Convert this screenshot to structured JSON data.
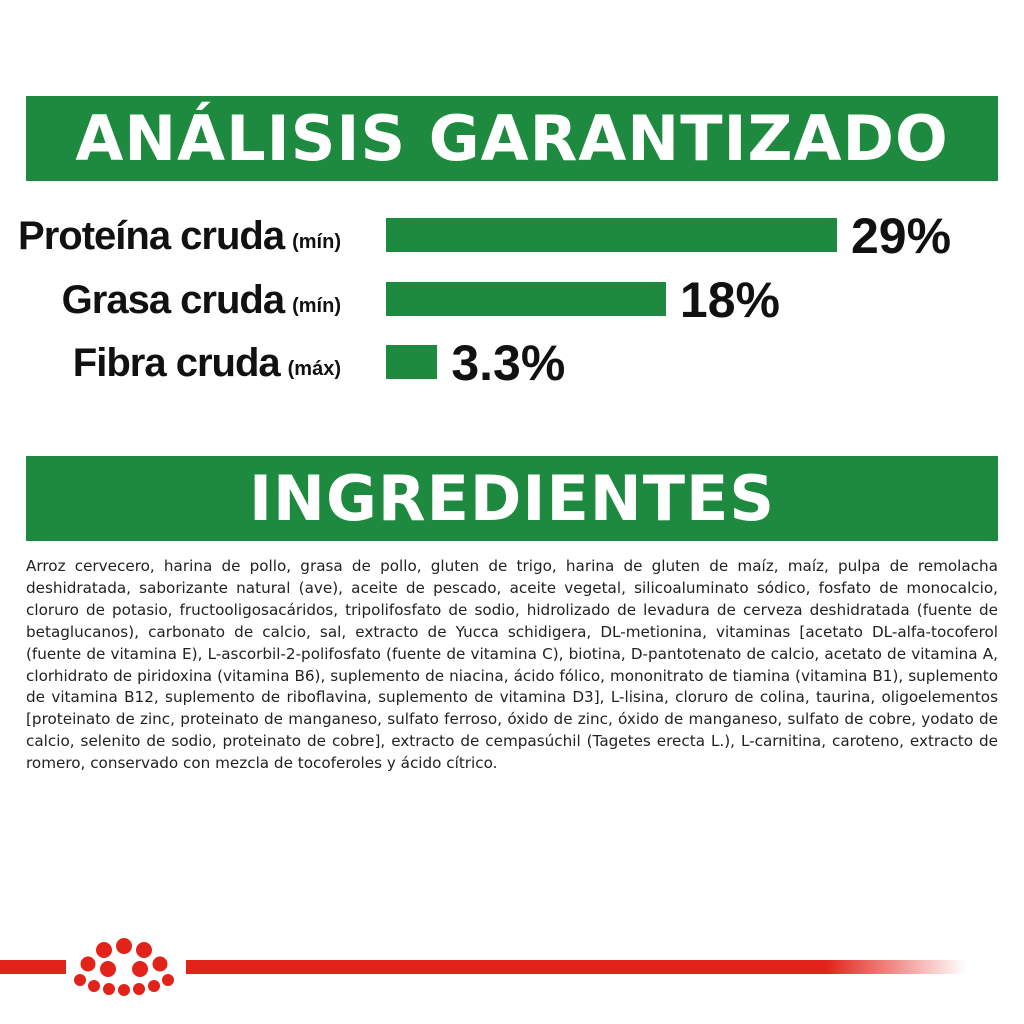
{
  "analysis": {
    "title": "ANÁLISIS GARANTIZADO",
    "rows": [
      {
        "label": "Proteína cruda",
        "qualifier": "(mín)",
        "value_text": "29%",
        "value": 29
      },
      {
        "label": "Grasa cruda",
        "qualifier": "(mín)",
        "value_text": "18%",
        "value": 18
      },
      {
        "label": "Fibra cruda",
        "qualifier": "(máx)",
        "value_text": "3.3%",
        "value": 3.3
      }
    ]
  },
  "ingredients": {
    "title": "INGREDIENTES",
    "text": "Arroz cervecero, harina de pollo, grasa de pollo, gluten de trigo, harina de gluten de maíz, maíz, pulpa de remolacha deshidratada, saborizante natural (ave), aceite de pescado, aceite vegetal, silicoaluminato sódico, fosfato de monocalcio, cloruro de potasio, fructooligosacáridos, tripolifosfato de sodio, hidrolizado de levadura de cerveza deshidratada (fuente de betaglucanos), carbonato de calcio, sal, extracto de Yucca schidigera, DL-metionina, vitaminas [acetato DL-alfa-tocoferol (fuente de vitamina E), L-ascorbil-2-polifosfato (fuente de vitamina C), biotina, D-pantotenato de calcio, acetato de vitamina A, clorhidrato de piridoxina (vitamina B6), suplemento de niacina, ácido fólico, mononitrato de tiamina (vitamina B1), suplemento de vitamina B12, suplemento de riboflavina, suplemento de vitamina D3], L-lisina, cloruro de colina, taurina, oligoelementos [proteinato de zinc, proteinato de manganeso, sulfato ferroso, óxido de zinc, óxido de manganeso, sulfato de cobre, yodato de calcio, selenito de sodio, proteinato de cobre], extracto de cempasúchil (Tagetes erecta L.), L-carnitina, caroteno, extracto de romero, conservado con mezcla de tocoferoles y ácido cítrico."
  },
  "colors": {
    "brand_green": "#1d8a3f",
    "brand_red": "#e2231a"
  },
  "footer": {
    "logo_icon": "royal-canin-crown-icon"
  }
}
